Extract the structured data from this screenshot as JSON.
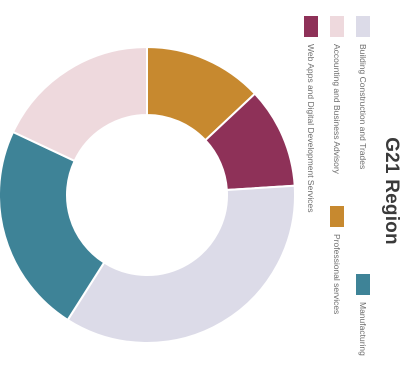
{
  "chart_data": {
    "type": "pie",
    "title": "G21 Region",
    "labels": [
      "Building Construction and Trades",
      "Manufacturing",
      "Accounting and Business Advisory",
      "Professional services",
      "Web Apps and Digital Development Services"
    ],
    "values": [
      35,
      23,
      18,
      13,
      11
    ],
    "colors": [
      "#dcdbe8",
      "#3e8397",
      "#eed9dd",
      "#c7892f",
      "#8e3158"
    ],
    "donut": true,
    "legend_position": "right"
  },
  "legend_layout": [
    {
      "label_index": 0,
      "color_index": 0
    },
    {
      "label_index": 1,
      "color_index": 1
    },
    {
      "label_index": 2,
      "color_index": 2
    },
    {
      "label_index": 3,
      "color_index": 3
    },
    {
      "label_index": 4,
      "color_index": 4
    }
  ]
}
